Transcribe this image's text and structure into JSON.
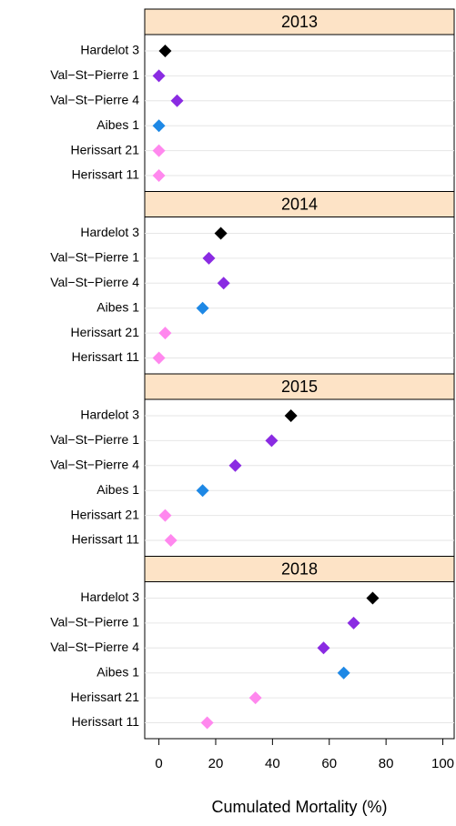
{
  "chart_data": {
    "type": "dot",
    "categories": [
      "Hardelot 3",
      "Val−St−Pierre 1",
      "Val−St−Pierre 4",
      "Aibes 1",
      "Herissart 21",
      "Herissart 11"
    ],
    "colors": [
      "#000000",
      "#8a2be2",
      "#8a2be2",
      "#1e88e5",
      "#ff88ee",
      "#ff88ee"
    ],
    "panels": [
      {
        "title": "2013",
        "values": [
          2.2,
          0,
          6.4,
          0,
          0,
          0
        ]
      },
      {
        "title": "2014",
        "values": [
          21.8,
          17.6,
          22.8,
          15.4,
          2.2,
          0
        ]
      },
      {
        "title": "2015",
        "values": [
          46.5,
          39.7,
          26.9,
          15.4,
          2.2,
          4.2
        ]
      },
      {
        "title": "2018",
        "values": [
          75.3,
          68.6,
          58,
          65.1,
          34,
          17
        ]
      }
    ],
    "xlabel": "Cumulated Mortality (%)",
    "xlim": [
      -5,
      104
    ],
    "xticks": [
      0,
      20,
      40,
      60,
      80,
      100
    ]
  }
}
